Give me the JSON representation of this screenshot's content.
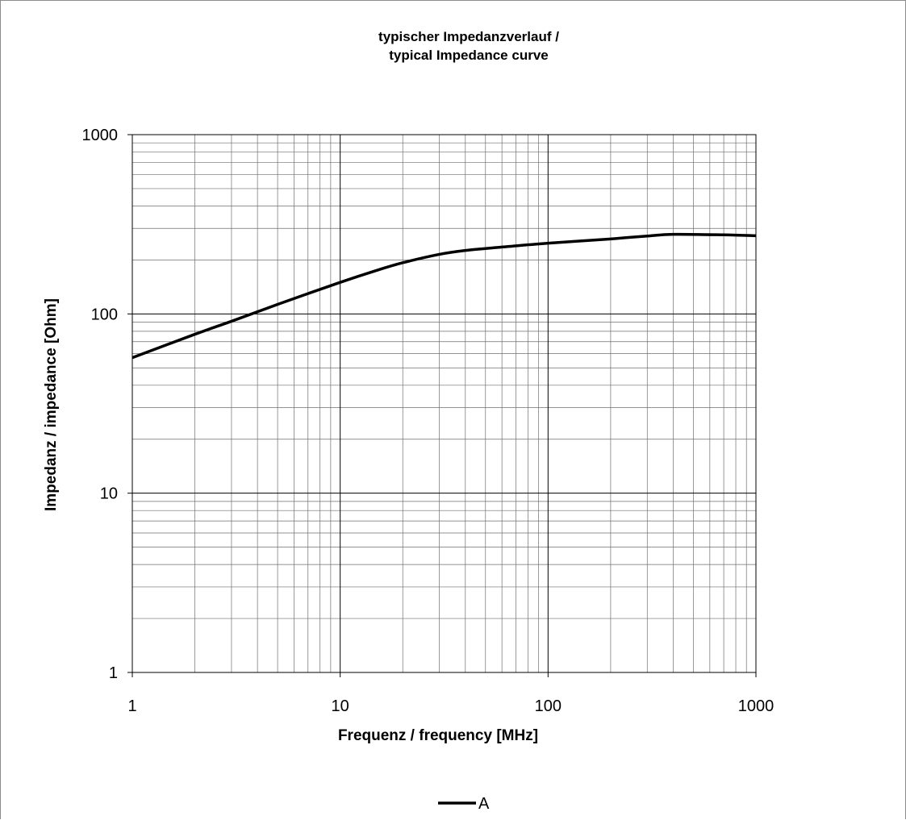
{
  "chart_data": {
    "type": "line",
    "title_line1": "typischer Impedanzverlauf /",
    "title_line2": "typical Impedance curve",
    "xlabel": "Frequenz / frequency [MHz]",
    "ylabel": "Impedanz / impedance [Ohm]",
    "x_scale": "log",
    "y_scale": "log",
    "xlim": [
      1,
      1000
    ],
    "ylim": [
      1,
      1000
    ],
    "x_ticks": [
      "1",
      "10",
      "100",
      "1000"
    ],
    "y_ticks": [
      "1000",
      "100",
      "10",
      "1"
    ],
    "grid": true,
    "legend_position": "bottom",
    "series": [
      {
        "name": "A",
        "color": "#000000",
        "x": [
          1,
          2,
          3,
          5,
          10,
          15,
          20,
          30,
          40,
          60,
          100,
          200,
          300,
          400,
          700,
          1000
        ],
        "y": [
          57,
          77,
          91,
          113,
          150,
          175,
          193,
          215,
          226,
          236,
          248,
          262,
          272,
          278,
          276,
          273
        ]
      }
    ]
  }
}
